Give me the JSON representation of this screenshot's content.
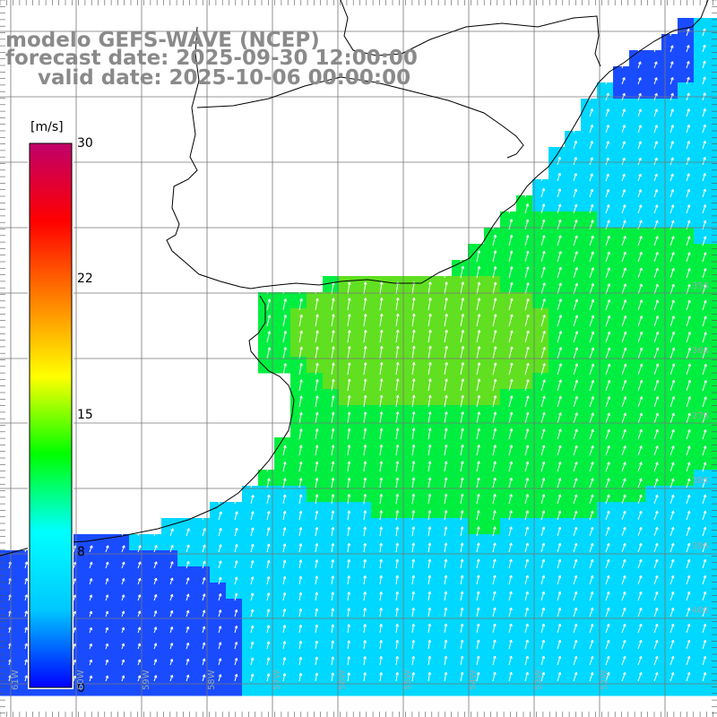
{
  "title": {
    "line1": "modelo GEFS-WAVE (NCEP)",
    "line2": "forecast date: 2025-09-30 12:00:00",
    "line3": "valid date: 2025-10-06 00:00:00"
  },
  "colorbar": {
    "unit": "[m/s]",
    "tick_labels": [
      "30",
      "22",
      "15",
      "8",
      "0"
    ],
    "min": 0,
    "max": 30,
    "colors": [
      "#0000ff",
      "#00c8ff",
      "#00ffff",
      "#00ff00",
      "#ffff00",
      "#ff8000",
      "#ff0000",
      "#c0006a"
    ]
  },
  "lat_labels": [
    "35S",
    "36S",
    "37S",
    "38S",
    "39S",
    "40S"
  ],
  "lon_labels": [
    "61W",
    "60W",
    "59W",
    "58W",
    "57W",
    "56W",
    "55W",
    "54W",
    "53W",
    "52W"
  ],
  "field": {
    "variable": "wind speed",
    "unit": "m/s",
    "colors": {
      "weak": "#1a4cff",
      "moderate": "#00d8ff",
      "strong": "#00ee40",
      "strongest": "#60e020"
    }
  }
}
